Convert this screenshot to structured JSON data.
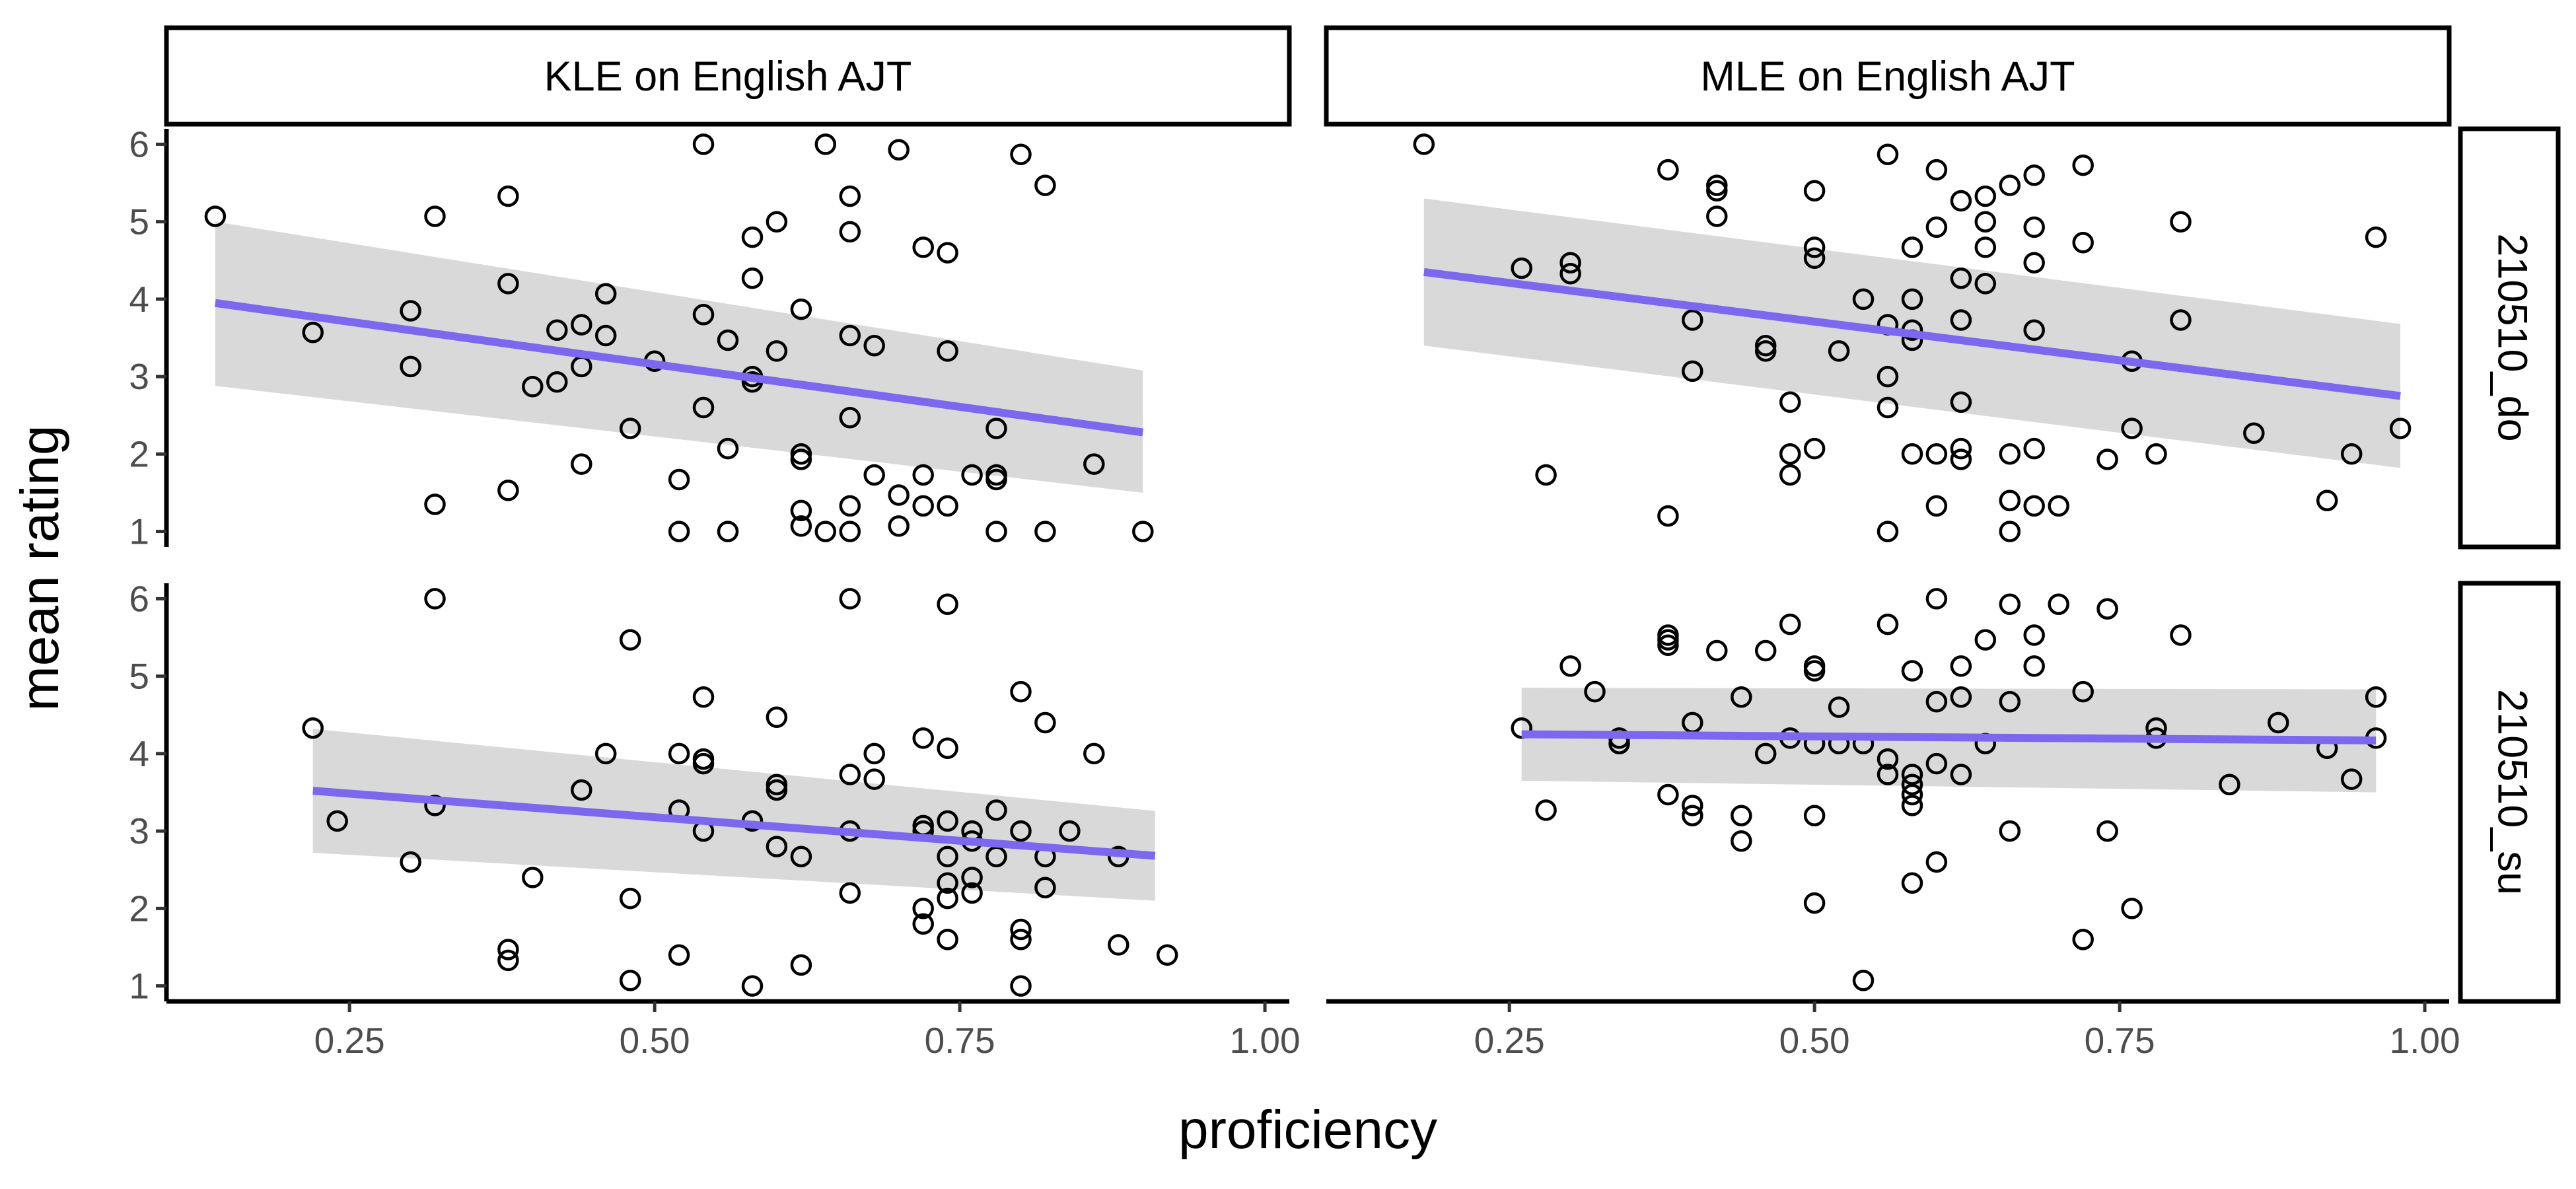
{
  "chart_data": {
    "type": "scatter",
    "xlabel": "proficiency",
    "ylabel": "mean rating",
    "xlim": [
      0.1,
      1.02
    ],
    "ylim": [
      0.8,
      6.2
    ],
    "x_ticks": [
      "0.25",
      "0.50",
      "0.75",
      "1.00"
    ],
    "x_tick_values": [
      0.25,
      0.5,
      0.75,
      1.0
    ],
    "y_ticks": [
      "1",
      "2",
      "3",
      "4",
      "5",
      "6"
    ],
    "y_tick_values": [
      1,
      2,
      3,
      4,
      5,
      6
    ],
    "column_strips": [
      "KLE on English AJT",
      "MLE on English AJT"
    ],
    "row_strips": [
      "210510_do",
      "210510_su"
    ],
    "colors": {
      "fit_line": "#7b68ee",
      "ribbon": "#d9d9d9",
      "point_stroke": "#000000",
      "strip_border": "#000000"
    },
    "grid": false,
    "panels": [
      {
        "column": 0,
        "row": 0,
        "fit": {
          "x": [
            0.14,
            0.9
          ],
          "y": [
            3.95,
            2.28
          ],
          "ci_lower": [
            2.88,
            1.5
          ],
          "ci_upper": [
            5.0,
            3.08
          ]
        },
        "points": [
          [
            0.14,
            5.07
          ],
          [
            0.22,
            3.57
          ],
          [
            0.3,
            3.85
          ],
          [
            0.3,
            3.13
          ],
          [
            0.32,
            5.07
          ],
          [
            0.32,
            1.35
          ],
          [
            0.38,
            5.33
          ],
          [
            0.38,
            4.2
          ],
          [
            0.38,
            1.53
          ],
          [
            0.4,
            2.87
          ],
          [
            0.42,
            2.93
          ],
          [
            0.42,
            3.6
          ],
          [
            0.44,
            3.67
          ],
          [
            0.44,
            3.13
          ],
          [
            0.44,
            1.87
          ],
          [
            0.46,
            4.07
          ],
          [
            0.46,
            3.53
          ],
          [
            0.48,
            2.33
          ],
          [
            0.5,
            3.2
          ],
          [
            0.52,
            1.67
          ],
          [
            0.52,
            1.0
          ],
          [
            0.54,
            6.0
          ],
          [
            0.54,
            3.8
          ],
          [
            0.54,
            2.6
          ],
          [
            0.56,
            3.47
          ],
          [
            0.56,
            2.07
          ],
          [
            0.56,
            1.0
          ],
          [
            0.58,
            4.8
          ],
          [
            0.58,
            4.27
          ],
          [
            0.58,
            3.0
          ],
          [
            0.58,
            2.93
          ],
          [
            0.6,
            5.0
          ],
          [
            0.6,
            3.33
          ],
          [
            0.62,
            3.87
          ],
          [
            0.62,
            2.0
          ],
          [
            0.62,
            1.93
          ],
          [
            0.62,
            1.27
          ],
          [
            0.62,
            1.07
          ],
          [
            0.64,
            6.0
          ],
          [
            0.64,
            1.0
          ],
          [
            0.66,
            5.33
          ],
          [
            0.66,
            4.87
          ],
          [
            0.66,
            3.53
          ],
          [
            0.66,
            2.47
          ],
          [
            0.66,
            1.33
          ],
          [
            0.66,
            1.0
          ],
          [
            0.68,
            3.4
          ],
          [
            0.68,
            1.73
          ],
          [
            0.7,
            5.93
          ],
          [
            0.7,
            1.47
          ],
          [
            0.7,
            1.07
          ],
          [
            0.72,
            4.67
          ],
          [
            0.72,
            1.73
          ],
          [
            0.72,
            1.33
          ],
          [
            0.74,
            4.6
          ],
          [
            0.74,
            3.33
          ],
          [
            0.74,
            1.33
          ],
          [
            0.76,
            1.73
          ],
          [
            0.78,
            2.33
          ],
          [
            0.78,
            1.73
          ],
          [
            0.78,
            1.67
          ],
          [
            0.78,
            1.0
          ],
          [
            0.8,
            5.87
          ],
          [
            0.82,
            5.47
          ],
          [
            0.82,
            1.0
          ],
          [
            0.86,
            1.87
          ],
          [
            0.9,
            1.0
          ]
        ]
      },
      {
        "column": 1,
        "row": 0,
        "fit": {
          "x": [
            0.18,
            0.98
          ],
          "y": [
            4.35,
            2.75
          ],
          "ci_lower": [
            3.4,
            1.82
          ],
          "ci_upper": [
            5.3,
            3.68
          ]
        },
        "points": [
          [
            0.18,
            6.0
          ],
          [
            0.26,
            4.4
          ],
          [
            0.28,
            1.73
          ],
          [
            0.3,
            4.47
          ],
          [
            0.3,
            4.33
          ],
          [
            0.38,
            5.67
          ],
          [
            0.38,
            1.2
          ],
          [
            0.4,
            3.73
          ],
          [
            0.4,
            3.07
          ],
          [
            0.42,
            5.47
          ],
          [
            0.42,
            5.4
          ],
          [
            0.42,
            5.07
          ],
          [
            0.46,
            3.4
          ],
          [
            0.46,
            3.33
          ],
          [
            0.48,
            2.67
          ],
          [
            0.48,
            2.0
          ],
          [
            0.48,
            1.73
          ],
          [
            0.5,
            5.4
          ],
          [
            0.5,
            4.67
          ],
          [
            0.5,
            4.53
          ],
          [
            0.5,
            2.07
          ],
          [
            0.52,
            3.33
          ],
          [
            0.54,
            4.0
          ],
          [
            0.56,
            5.87
          ],
          [
            0.56,
            3.67
          ],
          [
            0.56,
            3.0
          ],
          [
            0.56,
            2.6
          ],
          [
            0.56,
            1.0
          ],
          [
            0.58,
            4.67
          ],
          [
            0.58,
            4.0
          ],
          [
            0.58,
            3.6
          ],
          [
            0.58,
            3.47
          ],
          [
            0.58,
            2.0
          ],
          [
            0.6,
            5.67
          ],
          [
            0.6,
            4.93
          ],
          [
            0.6,
            2.0
          ],
          [
            0.6,
            1.33
          ],
          [
            0.62,
            5.27
          ],
          [
            0.62,
            4.27
          ],
          [
            0.62,
            3.73
          ],
          [
            0.62,
            2.67
          ],
          [
            0.62,
            2.07
          ],
          [
            0.62,
            1.93
          ],
          [
            0.64,
            5.33
          ],
          [
            0.64,
            5.0
          ],
          [
            0.64,
            4.67
          ],
          [
            0.64,
            4.2
          ],
          [
            0.66,
            5.47
          ],
          [
            0.66,
            2.0
          ],
          [
            0.66,
            1.4
          ],
          [
            0.66,
            1.0
          ],
          [
            0.68,
            5.6
          ],
          [
            0.68,
            4.93
          ],
          [
            0.68,
            4.47
          ],
          [
            0.68,
            3.6
          ],
          [
            0.68,
            2.07
          ],
          [
            0.68,
            1.33
          ],
          [
            0.7,
            1.33
          ],
          [
            0.72,
            5.73
          ],
          [
            0.72,
            4.73
          ],
          [
            0.74,
            1.93
          ],
          [
            0.76,
            3.2
          ],
          [
            0.76,
            2.33
          ],
          [
            0.78,
            2.0
          ],
          [
            0.8,
            5.0
          ],
          [
            0.8,
            3.73
          ],
          [
            0.86,
            2.27
          ],
          [
            0.92,
            1.4
          ],
          [
            0.94,
            2.0
          ],
          [
            0.96,
            4.8
          ],
          [
            0.98,
            2.33
          ]
        ]
      },
      {
        "column": 0,
        "row": 1,
        "fit": {
          "x": [
            0.22,
            0.91
          ],
          "y": [
            3.52,
            2.68
          ],
          "ci_lower": [
            2.72,
            2.1
          ],
          "ci_upper": [
            4.32,
            3.26
          ]
        },
        "points": [
          [
            0.22,
            4.33
          ],
          [
            0.24,
            3.13
          ],
          [
            0.3,
            2.6
          ],
          [
            0.32,
            6.0
          ],
          [
            0.32,
            3.33
          ],
          [
            0.38,
            1.47
          ],
          [
            0.38,
            1.33
          ],
          [
            0.4,
            2.4
          ],
          [
            0.44,
            3.53
          ],
          [
            0.46,
            4.0
          ],
          [
            0.48,
            5.47
          ],
          [
            0.48,
            2.13
          ],
          [
            0.48,
            1.07
          ],
          [
            0.52,
            4.0
          ],
          [
            0.52,
            3.27
          ],
          [
            0.52,
            1.4
          ],
          [
            0.54,
            4.73
          ],
          [
            0.54,
            3.93
          ],
          [
            0.54,
            3.87
          ],
          [
            0.54,
            3.0
          ],
          [
            0.58,
            3.13
          ],
          [
            0.58,
            1.0
          ],
          [
            0.6,
            4.47
          ],
          [
            0.6,
            3.6
          ],
          [
            0.6,
            3.53
          ],
          [
            0.6,
            2.8
          ],
          [
            0.62,
            2.67
          ],
          [
            0.62,
            1.27
          ],
          [
            0.66,
            6.0
          ],
          [
            0.66,
            3.73
          ],
          [
            0.66,
            3.0
          ],
          [
            0.66,
            2.2
          ],
          [
            0.68,
            4.0
          ],
          [
            0.68,
            3.67
          ],
          [
            0.72,
            4.2
          ],
          [
            0.72,
            3.07
          ],
          [
            0.72,
            3.0
          ],
          [
            0.72,
            2.0
          ],
          [
            0.72,
            1.8
          ],
          [
            0.74,
            5.93
          ],
          [
            0.74,
            4.07
          ],
          [
            0.74,
            3.13
          ],
          [
            0.74,
            2.67
          ],
          [
            0.74,
            2.33
          ],
          [
            0.74,
            2.13
          ],
          [
            0.74,
            1.6
          ],
          [
            0.76,
            3.0
          ],
          [
            0.76,
            2.87
          ],
          [
            0.76,
            2.4
          ],
          [
            0.76,
            2.2
          ],
          [
            0.78,
            3.27
          ],
          [
            0.78,
            2.67
          ],
          [
            0.8,
            4.8
          ],
          [
            0.8,
            3.0
          ],
          [
            0.8,
            1.73
          ],
          [
            0.8,
            1.6
          ],
          [
            0.8,
            1.0
          ],
          [
            0.82,
            4.4
          ],
          [
            0.82,
            2.67
          ],
          [
            0.82,
            2.27
          ],
          [
            0.84,
            3.0
          ],
          [
            0.86,
            4.0
          ],
          [
            0.88,
            2.67
          ],
          [
            0.88,
            1.53
          ],
          [
            0.92,
            1.4
          ]
        ]
      },
      {
        "column": 1,
        "row": 1,
        "fit": {
          "x": [
            0.26,
            0.96
          ],
          "y": [
            4.25,
            4.17
          ],
          "ci_lower": [
            3.65,
            3.5
          ],
          "ci_upper": [
            4.85,
            4.83
          ]
        },
        "points": [
          [
            0.26,
            4.33
          ],
          [
            0.28,
            3.27
          ],
          [
            0.3,
            5.13
          ],
          [
            0.32,
            4.8
          ],
          [
            0.34,
            4.2
          ],
          [
            0.34,
            4.13
          ],
          [
            0.38,
            5.53
          ],
          [
            0.38,
            5.47
          ],
          [
            0.38,
            5.4
          ],
          [
            0.38,
            3.47
          ],
          [
            0.4,
            4.4
          ],
          [
            0.4,
            3.33
          ],
          [
            0.4,
            3.2
          ],
          [
            0.42,
            5.33
          ],
          [
            0.44,
            4.73
          ],
          [
            0.44,
            3.2
          ],
          [
            0.44,
            2.87
          ],
          [
            0.46,
            5.33
          ],
          [
            0.46,
            4.0
          ],
          [
            0.48,
            5.67
          ],
          [
            0.48,
            4.2
          ],
          [
            0.5,
            5.13
          ],
          [
            0.5,
            5.07
          ],
          [
            0.5,
            4.13
          ],
          [
            0.5,
            3.2
          ],
          [
            0.5,
            2.07
          ],
          [
            0.52,
            4.6
          ],
          [
            0.52,
            4.13
          ],
          [
            0.54,
            4.13
          ],
          [
            0.54,
            1.07
          ],
          [
            0.56,
            5.67
          ],
          [
            0.56,
            3.93
          ],
          [
            0.56,
            3.73
          ],
          [
            0.58,
            5.07
          ],
          [
            0.58,
            3.73
          ],
          [
            0.58,
            3.6
          ],
          [
            0.58,
            3.47
          ],
          [
            0.58,
            3.33
          ],
          [
            0.58,
            2.33
          ],
          [
            0.6,
            6.0
          ],
          [
            0.6,
            4.67
          ],
          [
            0.6,
            3.87
          ],
          [
            0.6,
            2.6
          ],
          [
            0.62,
            5.13
          ],
          [
            0.62,
            4.73
          ],
          [
            0.62,
            3.73
          ],
          [
            0.64,
            5.47
          ],
          [
            0.64,
            4.13
          ],
          [
            0.66,
            5.93
          ],
          [
            0.66,
            4.67
          ],
          [
            0.66,
            3.0
          ],
          [
            0.68,
            5.53
          ],
          [
            0.68,
            5.13
          ],
          [
            0.7,
            5.93
          ],
          [
            0.72,
            4.8
          ],
          [
            0.72,
            1.6
          ],
          [
            0.74,
            5.87
          ],
          [
            0.74,
            3.0
          ],
          [
            0.76,
            2.0
          ],
          [
            0.78,
            4.33
          ],
          [
            0.78,
            4.2
          ],
          [
            0.8,
            5.53
          ],
          [
            0.84,
            3.6
          ],
          [
            0.88,
            4.4
          ],
          [
            0.92,
            4.07
          ],
          [
            0.94,
            3.67
          ],
          [
            0.96,
            4.73
          ],
          [
            0.96,
            4.2
          ]
        ]
      }
    ]
  }
}
